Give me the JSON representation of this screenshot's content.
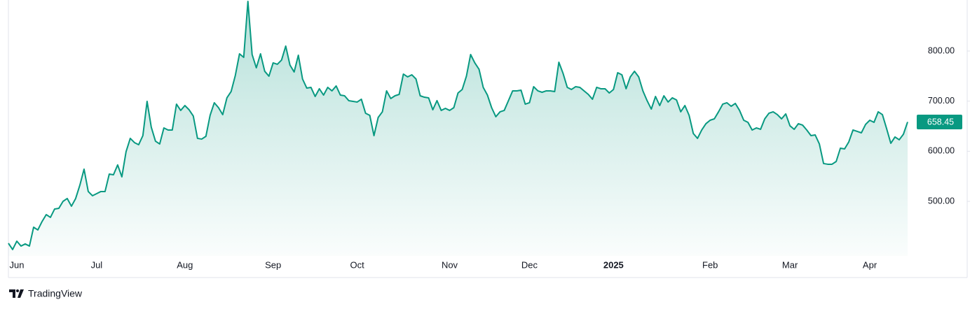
{
  "chart_data": {
    "type": "area",
    "color": "#089981",
    "grid": false,
    "yaxis_side": "right",
    "ylim": [
      391.3,
      901.8
    ],
    "yticks": [
      {
        "value": 500,
        "label": "500.00"
      },
      {
        "value": 600,
        "label": "600.00"
      },
      {
        "value": 700,
        "label": "700.00"
      },
      {
        "value": 800,
        "label": "800.00"
      }
    ],
    "categories": [
      null,
      null,
      "Jun",
      null,
      null,
      null,
      null,
      null,
      null,
      null,
      null,
      null,
      null,
      null,
      null,
      null,
      null,
      null,
      null,
      null,
      null,
      "Jul",
      null,
      null,
      null,
      null,
      null,
      null,
      null,
      null,
      null,
      null,
      null,
      null,
      null,
      null,
      null,
      null,
      null,
      null,
      null,
      null,
      "Aug",
      null,
      null,
      null,
      null,
      null,
      null,
      null,
      null,
      null,
      null,
      null,
      null,
      null,
      null,
      null,
      null,
      null,
      null,
      null,
      null,
      "Sep",
      null,
      null,
      null,
      null,
      null,
      null,
      null,
      null,
      null,
      null,
      null,
      null,
      null,
      null,
      null,
      null,
      null,
      null,
      null,
      "Oct",
      null,
      null,
      null,
      null,
      null,
      null,
      null,
      null,
      null,
      null,
      null,
      null,
      null,
      null,
      null,
      null,
      null,
      null,
      null,
      null,
      null,
      "Nov",
      null,
      null,
      null,
      null,
      null,
      null,
      null,
      null,
      null,
      null,
      null,
      null,
      null,
      null,
      null,
      null,
      null,
      null,
      "Dec",
      null,
      null,
      null,
      null,
      null,
      null,
      null,
      null,
      null,
      null,
      null,
      null,
      null,
      null,
      null,
      null,
      null,
      null,
      null,
      "2025",
      null,
      null,
      null,
      null,
      null,
      null,
      null,
      null,
      null,
      null,
      null,
      null,
      null,
      null,
      null,
      null,
      null,
      null,
      null,
      null,
      null,
      null,
      "Feb",
      null,
      null,
      null,
      null,
      null,
      null,
      null,
      null,
      null,
      null,
      null,
      null,
      null,
      null,
      null,
      null,
      null,
      null,
      "Mar",
      null,
      null,
      null,
      null,
      null,
      null,
      null,
      null,
      null,
      null,
      null,
      null,
      null,
      null,
      null,
      null,
      null,
      null,
      "Apr",
      null,
      null,
      null,
      null,
      null,
      null,
      null,
      null,
      null
    ],
    "values": [
      416.5,
      403.9,
      420.6,
      410.9,
      415.1,
      410.9,
      448.5,
      443.0,
      459.7,
      473.6,
      468.1,
      484.8,
      486.2,
      500.1,
      505.7,
      490.4,
      505.7,
      532.2,
      564.3,
      519.7,
      511.3,
      515.5,
      519.7,
      519.7,
      554.5,
      553.1,
      572.7,
      549.0,
      599.2,
      625.7,
      617.3,
      613.1,
      631.2,
      699.6,
      648.0,
      620.1,
      614.5,
      646.6,
      642.4,
      642.4,
      694.0,
      681.5,
      691.2,
      682.8,
      670.3,
      625.7,
      624.3,
      629.8,
      671.7,
      696.8,
      687.0,
      673.1,
      706.6,
      719.1,
      751.2,
      794.4,
      787.4,
      899.0,
      793.0,
      766.5,
      794.4,
      759.6,
      749.8,
      776.3,
      773.5,
      781.9,
      809.8,
      772.1,
      758.2,
      791.6,
      744.2,
      726.1,
      727.5,
      709.3,
      724.7,
      712.1,
      727.5,
      720.5,
      730.3,
      712.1,
      710.7,
      701.0,
      699.6,
      698.2,
      703.8,
      675.9,
      671.7,
      631.2,
      667.5,
      678.7,
      720.5,
      705.2,
      710.7,
      713.5,
      754.0,
      748.4,
      752.6,
      744.2,
      710.7,
      707.9,
      706.6,
      682.8,
      701.0,
      681.5,
      685.6,
      681.5,
      687.0,
      716.3,
      723.3,
      749.8,
      793.0,
      776.3,
      763.7,
      727.5,
      712.1,
      687.0,
      668.9,
      678.7,
      681.5,
      701.0,
      720.5,
      720.5,
      721.9,
      694.0,
      696.8,
      728.9,
      720.5,
      717.7,
      720.5,
      720.5,
      719.1,
      777.7,
      755.4,
      727.5,
      723.3,
      728.9,
      727.5,
      720.5,
      713.5,
      703.8,
      727.5,
      724.7,
      724.7,
      716.3,
      723.3,
      756.8,
      752.6,
      724.7,
      748.4,
      759.6,
      748.4,
      720.5,
      701.0,
      684.2,
      709.3,
      691.2,
      710.7,
      698.2,
      706.6,
      702.4,
      678.7,
      691.2,
      671.7,
      635.4,
      625.7,
      642.4,
      655.0,
      661.9,
      664.7,
      678.7,
      694.0,
      696.8,
      689.8,
      695.4,
      681.5,
      661.9,
      657.7,
      642.4,
      646.6,
      643.8,
      664.7,
      675.9,
      678.7,
      673.1,
      664.7,
      674.5,
      650.8,
      643.8,
      655.0,
      652.2,
      642.4,
      631.2,
      632.6,
      614.5,
      575.5,
      574.1,
      574.1,
      579.6,
      606.1,
      604.7,
      618.7,
      642.4,
      639.6,
      636.8,
      653.6,
      661.9,
      657.7,
      678.7,
      673.1,
      645.2,
      615.9,
      628.5,
      622.9,
      634.0,
      658.45
    ]
  },
  "footer": {
    "brand": "TradingView"
  }
}
